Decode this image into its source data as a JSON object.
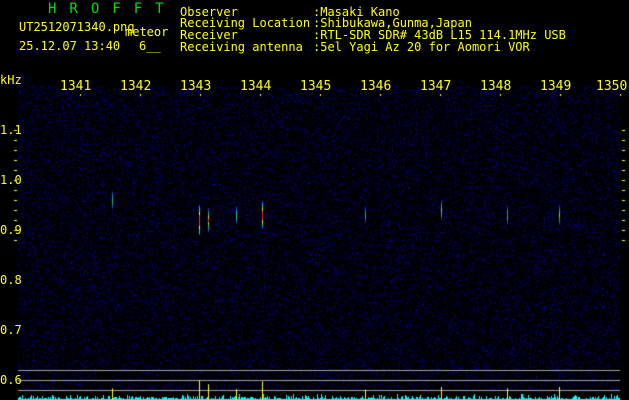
{
  "header": {
    "app_title": "HROFFT",
    "filename": "UT2512071340.png",
    "mode": "meteor",
    "datetime": "25.12.07 13:40",
    "count": "6__"
  },
  "info": [
    {
      "label": "Observer",
      "value": ":Masaki Kano"
    },
    {
      "label": "Receiving Location",
      "value": ":Shibukawa,Gunma,Japan"
    },
    {
      "label": "Receiver",
      "value": ":RTL-SDR SDR# 43dB L15 114.1MHz USB"
    },
    {
      "label": "Receiving antenna",
      "value": ":5el Yagi Az 20 for Aomori VOR"
    }
  ],
  "chart_data": {
    "type": "heatmap",
    "ylabel": "kHz",
    "x_ticks": [
      "1341",
      "1342",
      "1343",
      "1344",
      "1345",
      "1346",
      "1347",
      "1348",
      "1349",
      "1350"
    ],
    "xlim": [
      1340,
      1350
    ],
    "y_ticks": [
      "1.1",
      "1.0",
      "0.9",
      "0.8",
      "0.7",
      "0.6"
    ],
    "ylim": [
      0.59,
      1.2
    ],
    "echoes": [
      {
        "x": 1341.53,
        "y": 0.96,
        "strength": 0.4
      },
      {
        "x": 1342.98,
        "y": 0.92,
        "strength": 1.0
      },
      {
        "x": 1343.13,
        "y": 0.92,
        "strength": 0.7
      },
      {
        "x": 1343.6,
        "y": 0.93,
        "strength": 0.35
      },
      {
        "x": 1344.03,
        "y": 0.93,
        "strength": 0.9
      },
      {
        "x": 1345.75,
        "y": 0.93,
        "strength": 0.3
      },
      {
        "x": 1347.02,
        "y": 0.94,
        "strength": 0.5
      },
      {
        "x": 1348.12,
        "y": 0.93,
        "strength": 0.4
      },
      {
        "x": 1348.98,
        "y": 0.93,
        "strength": 0.5
      }
    ],
    "colors": {
      "background": "#000010",
      "noise": "#1020a0",
      "spectrum": "#00ffff",
      "peak": "#ffff00",
      "grid": "#a0a0a0",
      "text": "#ffff00"
    }
  }
}
